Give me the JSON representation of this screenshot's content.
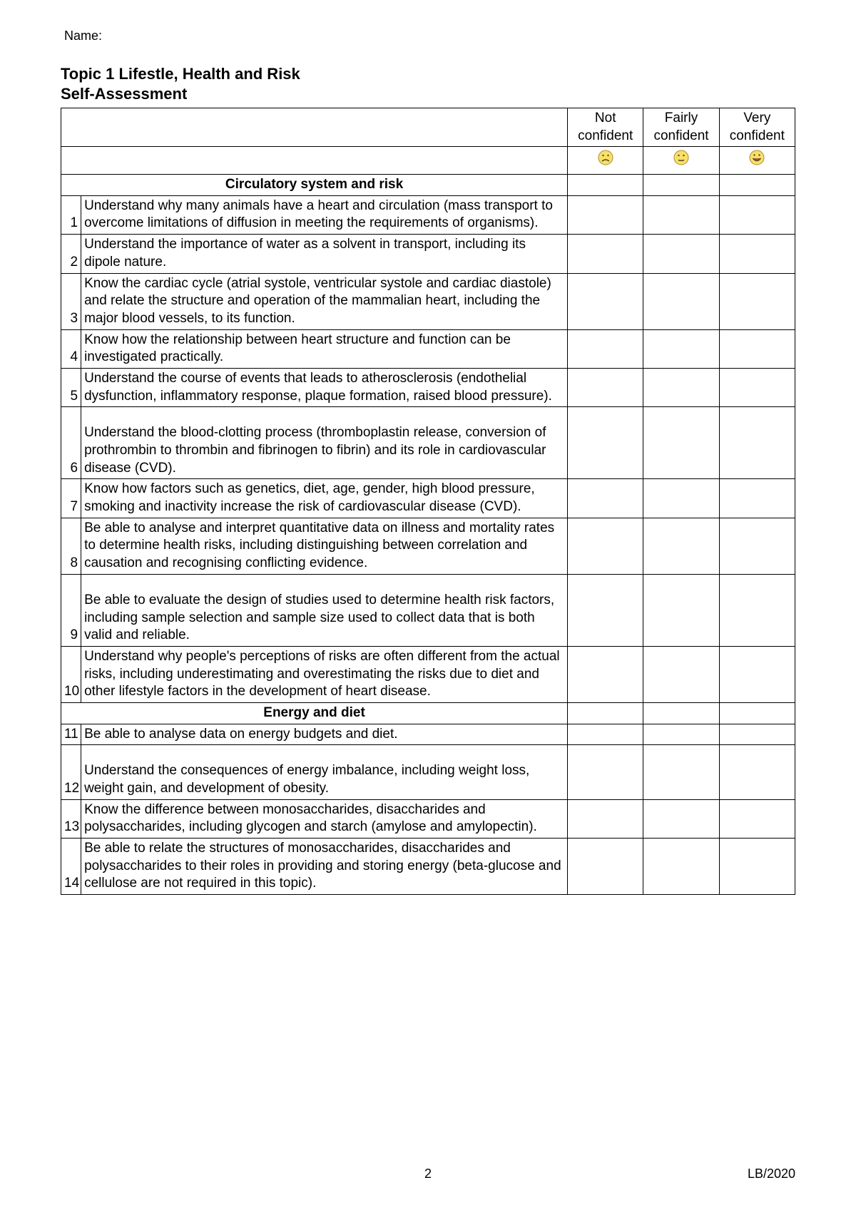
{
  "name_label": "Name:",
  "title": "Topic 1 Lifestle, Health and Risk",
  "subtitle": "Self-Assessment",
  "headers": {
    "not_confident": "Not confident",
    "fairly_confident": "Fairly confident",
    "very_confident": "Very confident"
  },
  "emojis": {
    "sad": {
      "face": "#f7e06a",
      "stroke": "#b08a2a"
    },
    "neutral": {
      "face": "#f7e06a",
      "stroke": "#b08a2a"
    },
    "happy": {
      "face": "#f7e06a",
      "stroke": "#b08a2a"
    }
  },
  "sections": [
    {
      "title": "Circulatory system and risk",
      "rows": [
        {
          "num": "1",
          "text": "Understand why many animals have a heart and circulation (mass transport to overcome limitations of diffusion in meeting the requirements of organisms)."
        },
        {
          "num": "2",
          "text": "Understand the importance of water as a solvent in transport, including its dipole nature."
        },
        {
          "num": "3",
          "text": "Know the cardiac cycle (atrial systole, ventricular systole and cardiac diastole) and relate the structure and operation of the mammalian heart, including the major blood vessels, to its function."
        },
        {
          "num": "4",
          "text": "Know how the relationship between heart structure and function can be investigated practically."
        },
        {
          "num": "5",
          "text": "Understand the course of events that leads to atherosclerosis (endothelial dysfunction, inflammatory response, plaque formation, raised blood pressure)."
        },
        {
          "num": "6",
          "text": "Understand the blood-clotting process (thromboplastin release, conversion of prothrombin to thrombin and fibrinogen to fibrin) and its role in cardiovascular disease (CVD).",
          "pad_top": true
        },
        {
          "num": "7",
          "text": "Know how factors such as genetics, diet, age, gender, high blood pressure, smoking and inactivity increase the risk of cardiovascular disease (CVD)."
        },
        {
          "num": "8",
          "text": "Be able to analyse and interpret quantitative data on illness and mortality rates to determine health risks, including distinguishing between correlation and causation and recognising conflicting evidence."
        },
        {
          "num": "9",
          "text": "Be able to evaluate the design of studies used to determine health risk factors, including sample selection and sample size used to collect data that is both valid and reliable.",
          "pad_top": true
        },
        {
          "num": "10",
          "text": "Understand why people's perceptions of risks are often different from the actual risks, including underestimating and overestimating the risks due to diet and other lifestyle factors in the development of heart disease."
        }
      ]
    },
    {
      "title": "Energy and diet",
      "rows": [
        {
          "num": "11",
          "text": "Be able to analyse data on energy budgets and diet."
        },
        {
          "num": "12",
          "text": "Understand the consequences of energy imbalance, including weight loss, weight gain, and development of obesity.",
          "pad_top": true
        },
        {
          "num": "13",
          "text": "Know the difference between monosaccharides, disaccharides and polysaccharides, including glycogen and starch (amylose and amylopectin)."
        },
        {
          "num": "14",
          "text": "Be able to relate the structures of monosaccharides, disaccharides and polysaccharides to their roles in providing and storing energy (beta-glucose and cellulose are not required in this topic)."
        }
      ]
    }
  ],
  "footer": {
    "page": "2",
    "right": "LB/2020"
  }
}
